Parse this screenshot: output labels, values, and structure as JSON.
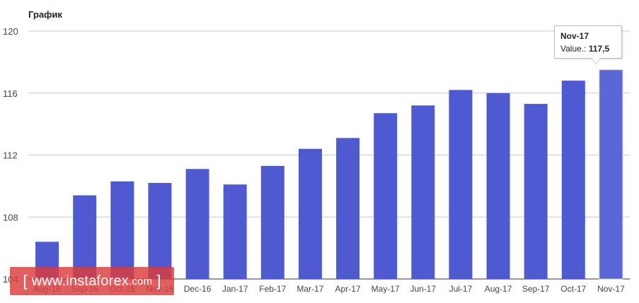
{
  "chart_data": {
    "type": "bar",
    "title": "График",
    "categories": [
      "Aug-16",
      "Sep-16",
      "Oct-16",
      "Nov-16",
      "Dec-16",
      "Jan-17",
      "Feb-17",
      "Mar-17",
      "Apr-17",
      "May-17",
      "Jun-17",
      "Jul-17",
      "Aug-17",
      "Sep-17",
      "Oct-17",
      "Nov-17"
    ],
    "series": [
      {
        "values": [
          106.4,
          109.4,
          110.3,
          110.2,
          111.1,
          110.1,
          111.3,
          112.4,
          113.1,
          114.7,
          115.2,
          116.2,
          116.0,
          115.3,
          116.8,
          117.5
        ]
      }
    ],
    "ylim": [
      104,
      120
    ],
    "yticks": [
      "104",
      "108",
      "112",
      "116",
      "120"
    ],
    "grid": true,
    "bar_color": "#4f5ad0",
    "highlight_color": "#5a65d8"
  },
  "tooltip": {
    "category": "Nov-17",
    "label": "Value.:",
    "value": "117,5"
  },
  "watermark": {
    "open": "[",
    "site": "www.instaforex",
    "tld": ".com",
    "close": "]"
  }
}
